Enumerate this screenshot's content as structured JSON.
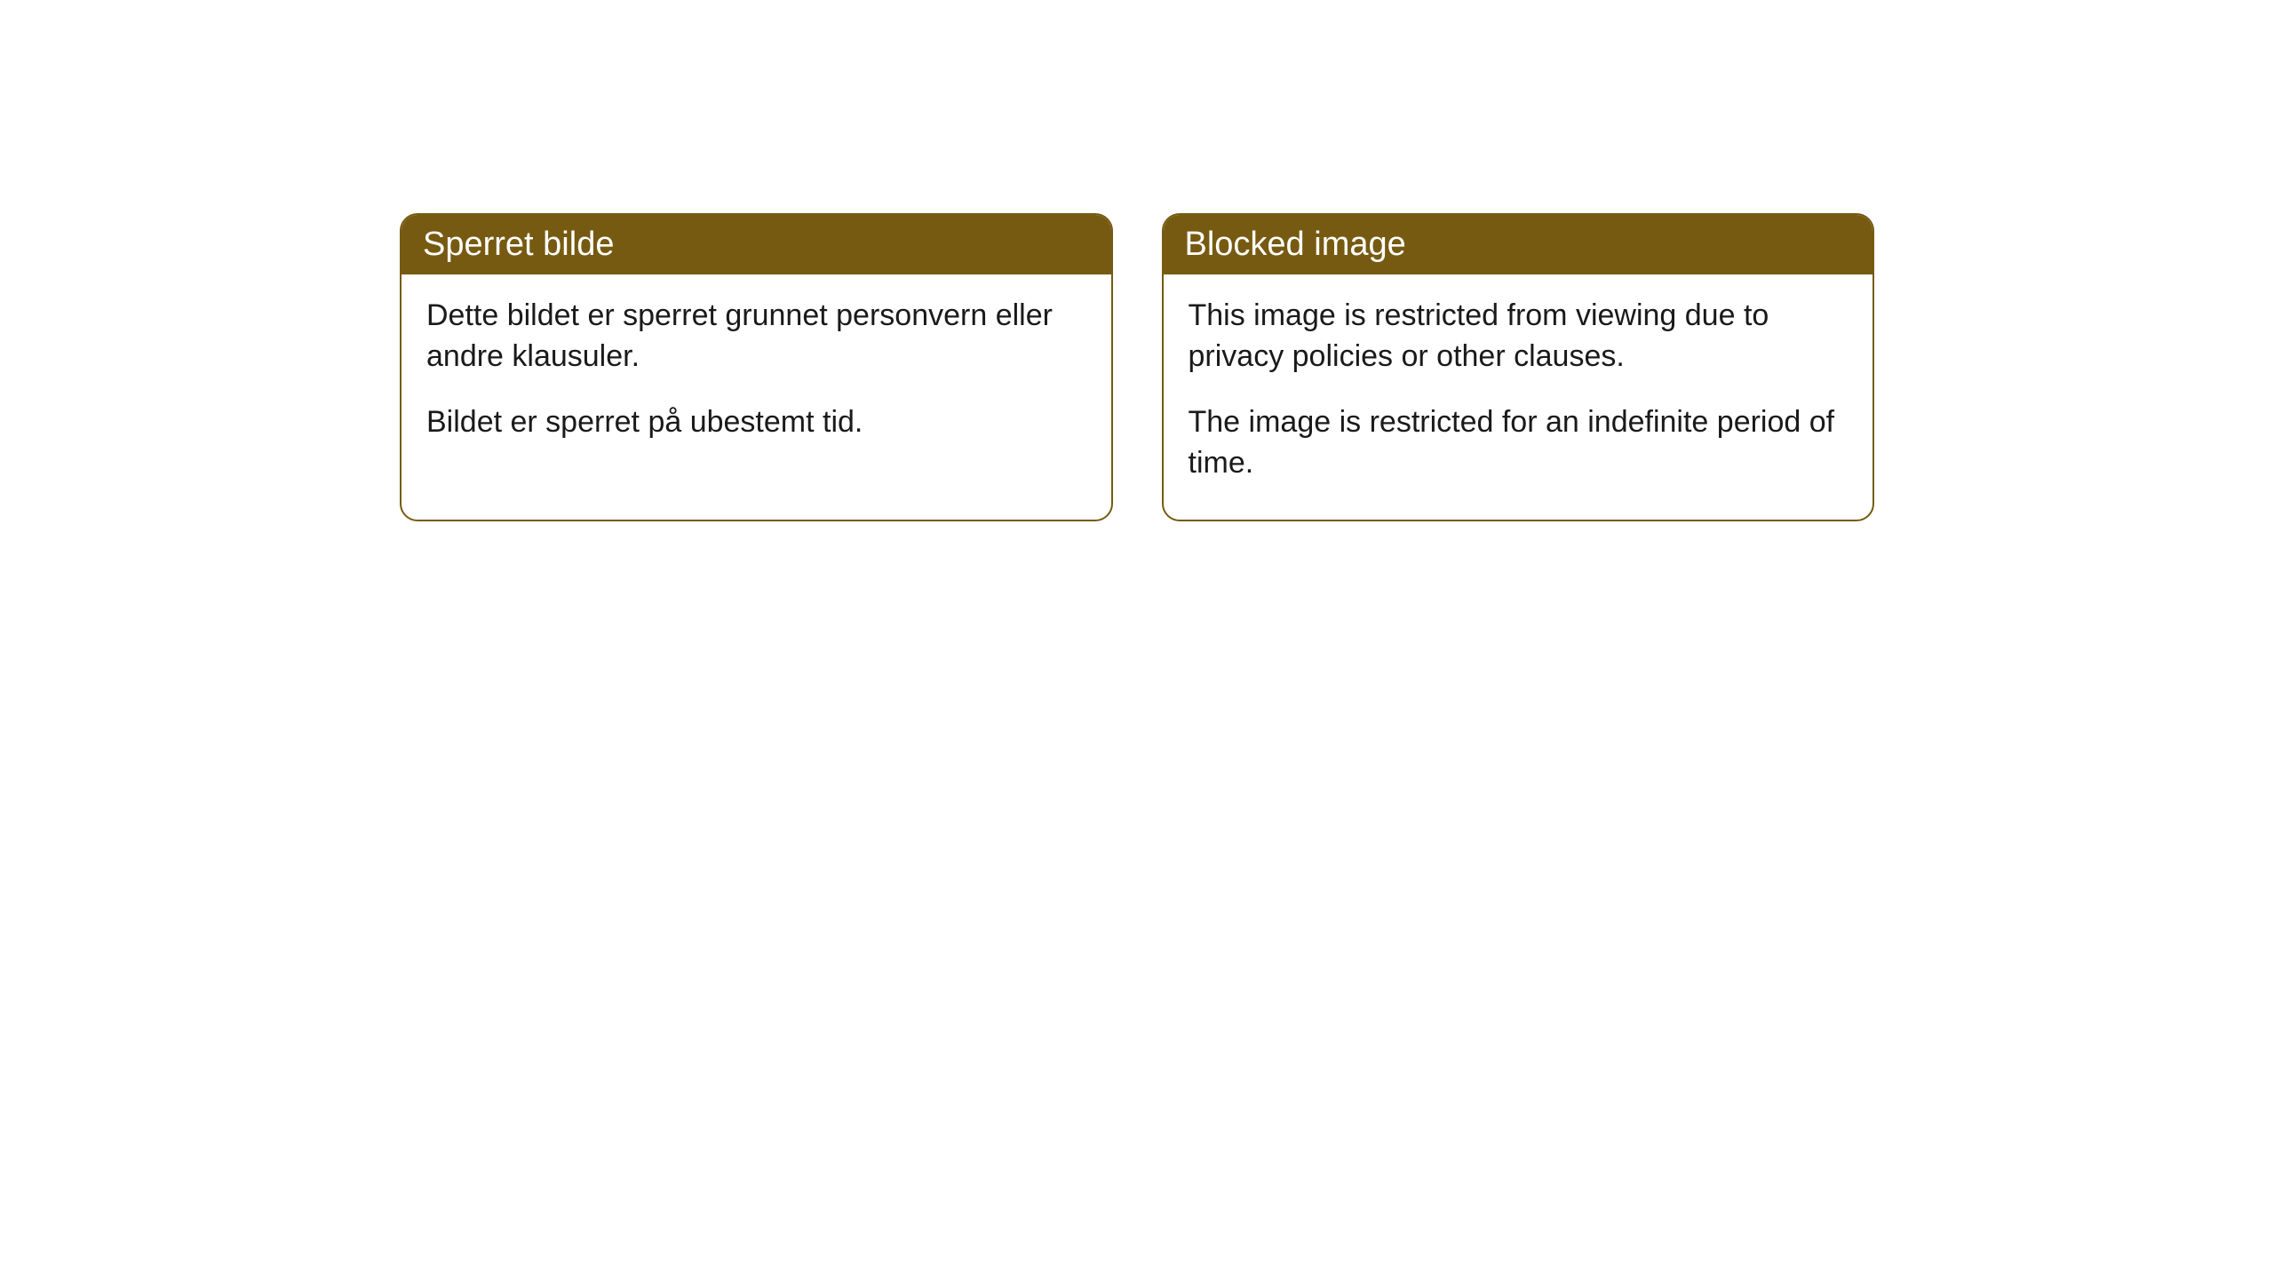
{
  "cards": [
    {
      "title": "Sperret bilde",
      "paragraph1": "Dette bildet er sperret grunnet personvern eller andre klausuler.",
      "paragraph2": "Bildet er sperret på ubestemt tid."
    },
    {
      "title": "Blocked image",
      "paragraph1": "This image is restricted from viewing due to privacy policies or other clauses.",
      "paragraph2": "The image is restricted for an indefinite period of time."
    }
  ],
  "styling": {
    "header_background_color": "#775a11",
    "header_text_color": "#ffffff",
    "border_color": "#775a11",
    "body_text_color": "#1a1a1a",
    "card_background_color": "#ffffff",
    "page_background_color": "#ffffff",
    "border_radius": 20,
    "header_fontsize": 38,
    "body_fontsize": 34
  }
}
